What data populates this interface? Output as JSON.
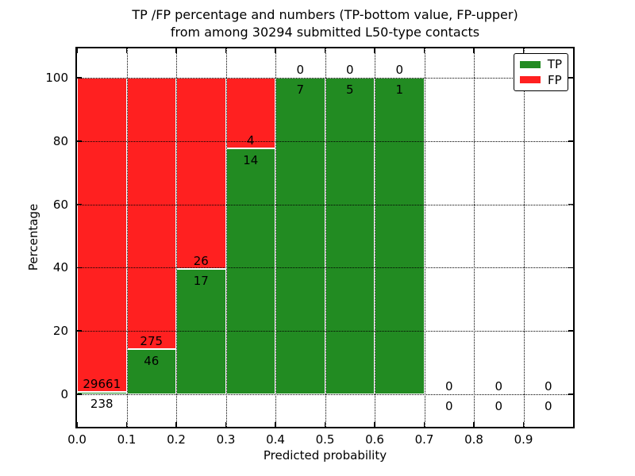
{
  "chart_data": {
    "type": "bar",
    "subtype": "stacked-percentage-histogram",
    "title_line1": "TP /FP percentage and numbers (TP-bottom value, FP-upper)",
    "title_line2": "from among 30294 submitted L50-type contacts",
    "xlabel": "Predicted probability",
    "ylabel": "Percentage",
    "xlim": [
      0.0,
      1.0
    ],
    "ylim": [
      -10.3,
      109.3
    ],
    "grid": {
      "style": "dotted",
      "color": "#000000"
    },
    "legend_position": "upper-right",
    "x_bin_edges": [
      0.0,
      0.1,
      0.2,
      0.3,
      0.4,
      0.5,
      0.6,
      0.7,
      0.8,
      0.9,
      1.0
    ],
    "xticks": [
      {
        "value": 0.0,
        "label": "0.0"
      },
      {
        "value": 0.1,
        "label": "0.1"
      },
      {
        "value": 0.2,
        "label": "0.2"
      },
      {
        "value": 0.3,
        "label": "0.3"
      },
      {
        "value": 0.4,
        "label": "0.4"
      },
      {
        "value": 0.5,
        "label": "0.5"
      },
      {
        "value": 0.6,
        "label": "0.6"
      },
      {
        "value": 0.7,
        "label": "0.7"
      },
      {
        "value": 0.8,
        "label": "0.8"
      },
      {
        "value": 0.9,
        "label": "0.9"
      }
    ],
    "yticks": [
      {
        "value": 0,
        "label": "0"
      },
      {
        "value": 20,
        "label": "20"
      },
      {
        "value": 40,
        "label": "40"
      },
      {
        "value": 60,
        "label": "60"
      },
      {
        "value": 80,
        "label": "80"
      },
      {
        "value": 100,
        "label": "100"
      }
    ],
    "series": [
      {
        "name": "TP",
        "color": "#228b22",
        "counts": [
          238,
          46,
          17,
          14,
          7,
          5,
          1,
          0,
          0,
          0
        ]
      },
      {
        "name": "FP",
        "color": "#ff2020",
        "counts": [
          29661,
          275,
          26,
          4,
          0,
          0,
          0,
          0,
          0,
          0
        ]
      }
    ],
    "tp_percentages": [
      0.8,
      14.3,
      39.5,
      77.8,
      100.0,
      100.0,
      100.0,
      null,
      null,
      null
    ],
    "annotation_rule": "TP count shown below segment boundary, FP count shown above it"
  }
}
